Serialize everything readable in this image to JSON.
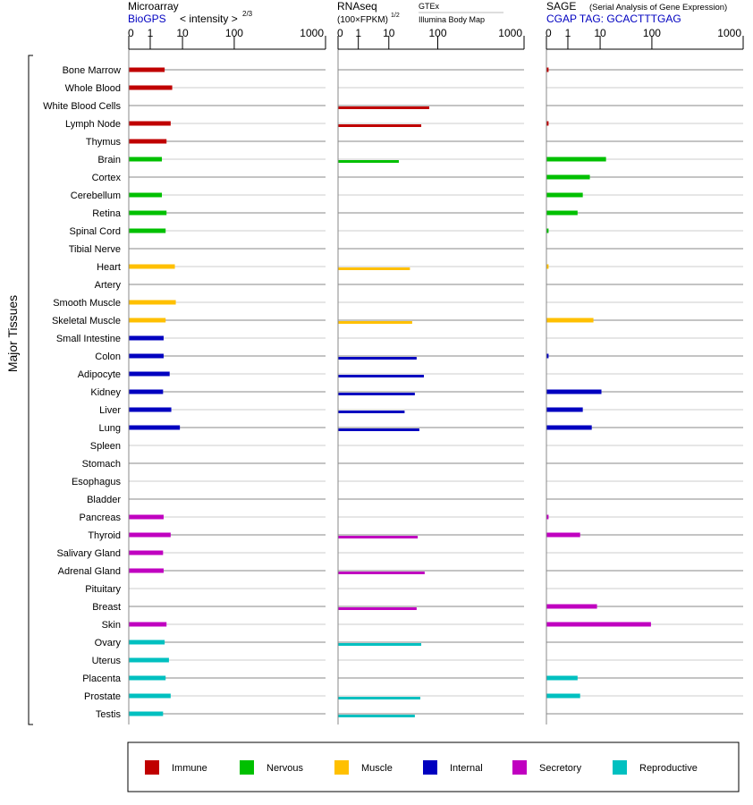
{
  "chart_data": {
    "type": "bar",
    "ylabel": "Major Tissues",
    "group_colors": {
      "Immune": "#c00000",
      "Nervous": "#00c000",
      "Muscle": "#ffc000",
      "Internal": "#0000c0",
      "Secretory": "#c000c0",
      "Reproductive": "#00c0c0"
    },
    "legend": [
      "Immune",
      "Nervous",
      "Muscle",
      "Internal",
      "Secretory",
      "Reproductive"
    ],
    "legend_placement": "bottom",
    "scale_ticks": [
      "0",
      "1",
      "10",
      "100",
      "1000"
    ],
    "categories": [
      "Bone Marrow",
      "Whole Blood",
      "White Blood Cells",
      "Lymph Node",
      "Thymus",
      "Brain",
      "Cortex",
      "Cerebellum",
      "Retina",
      "Spinal Cord",
      "Tibial Nerve",
      "Heart",
      "Artery",
      "Smooth Muscle",
      "Skeletal Muscle",
      "Small Intestine",
      "Colon",
      "Adipocyte",
      "Kidney",
      "Liver",
      "Lung",
      "Spleen",
      "Stomach",
      "Esophagus",
      "Bladder",
      "Pancreas",
      "Thyroid",
      "Salivary Gland",
      "Adrenal Gland",
      "Pituitary",
      "Breast",
      "Skin",
      "Ovary",
      "Uterus",
      "Placenta",
      "Prostate",
      "Testis"
    ],
    "groups": [
      "Immune",
      "Immune",
      "Immune",
      "Immune",
      "Immune",
      "Nervous",
      "Nervous",
      "Nervous",
      "Nervous",
      "Nervous",
      "Nervous",
      "Muscle",
      "Muscle",
      "Muscle",
      "Muscle",
      "Internal",
      "Internal",
      "Internal",
      "Internal",
      "Internal",
      "Internal",
      "Internal",
      "Internal",
      "Internal",
      "Internal",
      "Secretory",
      "Secretory",
      "Secretory",
      "Secretory",
      "Secretory",
      "Secretory",
      "Secretory",
      "Reproductive",
      "Reproductive",
      "Reproductive",
      "Reproductive",
      "Reproductive"
    ],
    "panels": [
      {
        "title": "Microarray",
        "subtitle": "BioGPS",
        "scale_label": "< intensity >",
        "scale_exp": "2/3",
        "values": [
          2.8,
          4.8,
          null,
          4.3,
          3.2,
          2.3,
          null,
          2.3,
          3.2,
          3.0,
          null,
          5.8,
          null,
          6.2,
          3.0,
          2.6,
          2.6,
          4.0,
          2.5,
          4.5,
          8.3,
          null,
          null,
          null,
          null,
          2.6,
          4.3,
          2.5,
          2.6,
          null,
          null,
          3.2,
          2.8,
          3.8,
          3.0,
          4.3,
          2.5
        ]
      },
      {
        "title": "RNAseq",
        "scale_label": "(100×FPKM)",
        "scale_exp": "1/2",
        "source_top": "GTEx",
        "source_bottom": "Illumina Body Map",
        "values": [
          null,
          null,
          67,
          46,
          null,
          16,
          null,
          null,
          null,
          null,
          null,
          27,
          null,
          null,
          30,
          null,
          37,
          52,
          34,
          21,
          42,
          null,
          null,
          null,
          null,
          null,
          39,
          null,
          54,
          null,
          37,
          null,
          46,
          null,
          null,
          44,
          34
        ]
      },
      {
        "title": "SAGE",
        "subtitle_note": "(Serial Analysis of Gene Expression)",
        "subtitle": "CGAP TAG: GCACTTTGAG",
        "values": [
          0.1,
          null,
          null,
          0.1,
          null,
          13,
          4.8,
          2.9,
          2.0,
          0.1,
          null,
          0.1,
          null,
          null,
          6.2,
          null,
          0.1,
          null,
          10.6,
          2.9,
          5.5,
          null,
          null,
          null,
          null,
          0.1,
          2.4,
          null,
          null,
          null,
          8,
          96,
          null,
          null,
          2.0,
          2.4,
          null
        ]
      }
    ]
  }
}
